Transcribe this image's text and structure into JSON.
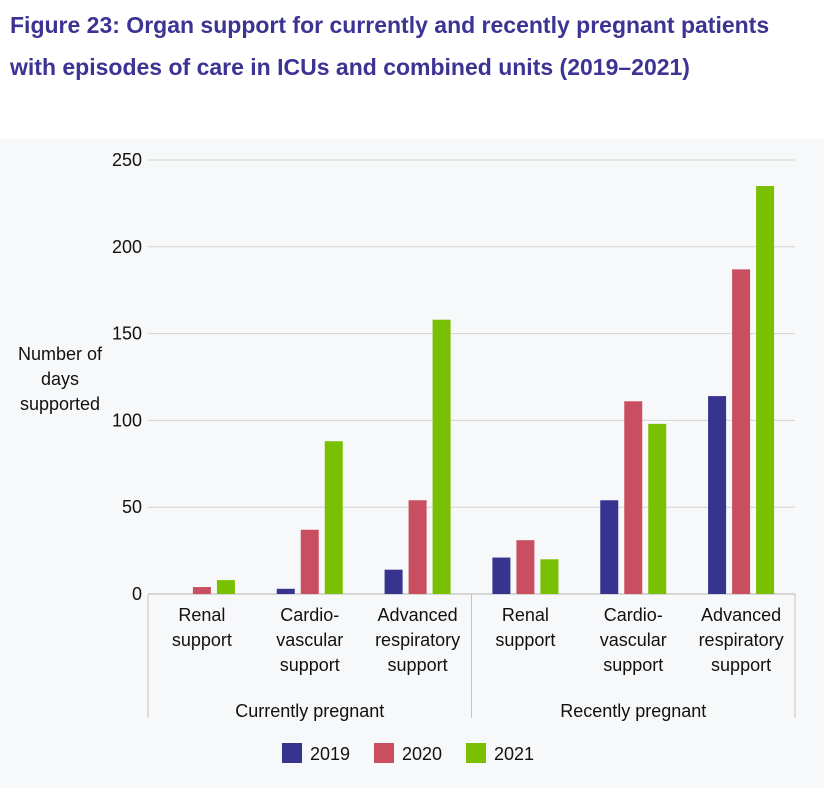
{
  "chart_data": {
    "type": "bar",
    "title": "Figure 23: Organ support for currently and recently pregnant patients with episodes of care in ICUs and combined units (2019–2021)",
    "ylabel_lines": [
      "Number of",
      "days",
      "supported"
    ],
    "ylim": [
      0,
      250
    ],
    "yticks": [
      0,
      50,
      100,
      150,
      200,
      250
    ],
    "grid": true,
    "legend_position": "bottom-center",
    "groups": [
      {
        "label": "Currently pregnant",
        "categories": [
          {
            "label_lines": [
              "Renal",
              "support"
            ]
          },
          {
            "label_lines": [
              "Cardio-",
              "vascular",
              "support"
            ]
          },
          {
            "label_lines": [
              "Advanced",
              "respiratory",
              "support"
            ]
          }
        ]
      },
      {
        "label": "Recently pregnant",
        "categories": [
          {
            "label_lines": [
              "Renal",
              "support"
            ]
          },
          {
            "label_lines": [
              "Cardio-",
              "vascular",
              "support"
            ]
          },
          {
            "label_lines": [
              "Advanced",
              "respiratory",
              "support"
            ]
          }
        ]
      }
    ],
    "series": [
      {
        "name": "2019",
        "color": "#37348f",
        "values": [
          0,
          3,
          14,
          21,
          54,
          114
        ]
      },
      {
        "name": "2020",
        "color": "#c94f60",
        "values": [
          4,
          37,
          54,
          31,
          111,
          187
        ]
      },
      {
        "name": "2021",
        "color": "#79c000",
        "values": [
          8,
          88,
          158,
          20,
          98,
          235
        ]
      }
    ]
  }
}
